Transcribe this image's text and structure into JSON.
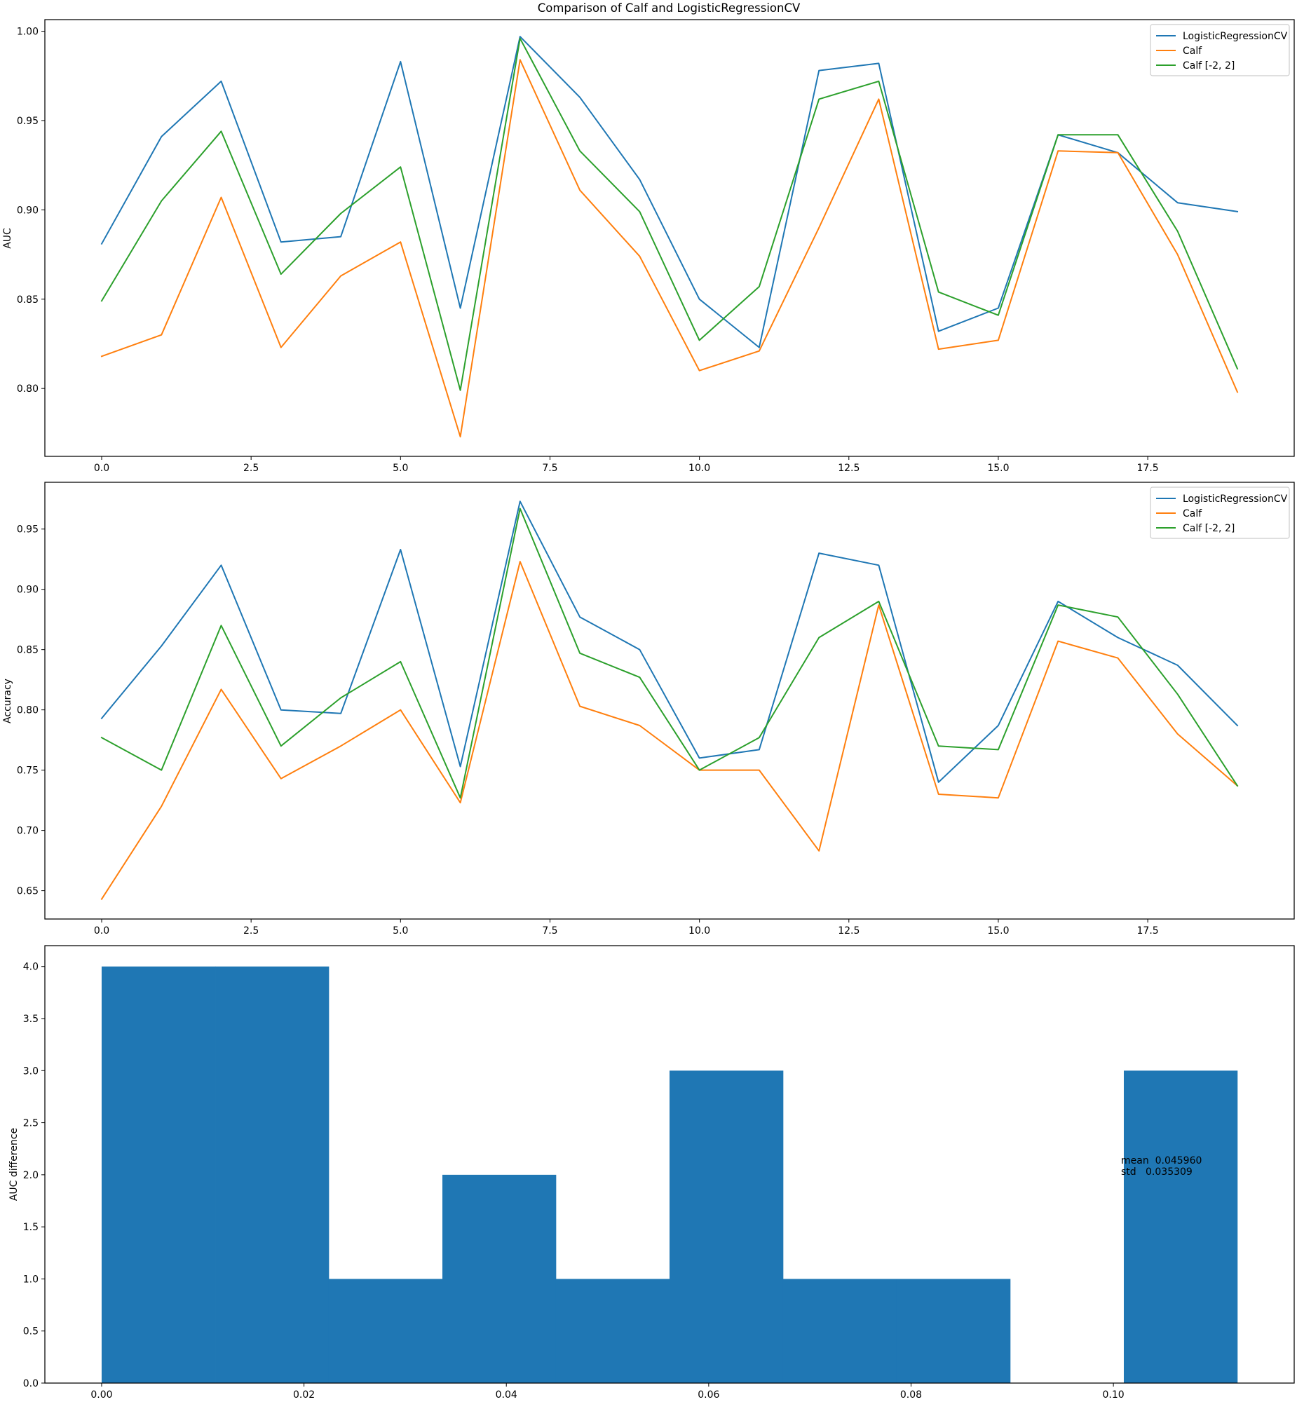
{
  "chart_data": [
    {
      "type": "line",
      "title": "Comparison of Calf and LogisticRegressionCV",
      "xlabel": "",
      "ylabel": "AUC",
      "x": [
        0,
        1,
        2,
        3,
        4,
        5,
        6,
        7,
        8,
        9,
        10,
        11,
        12,
        13,
        14,
        15,
        16,
        17,
        18,
        19
      ],
      "xlim": [
        -0.95,
        19.95
      ],
      "ylim": [
        0.762,
        1.0065
      ],
      "xticks": [
        0.0,
        2.5,
        5.0,
        7.5,
        10.0,
        12.5,
        15.0,
        17.5
      ],
      "xtick_labels": [
        "0.0",
        "2.5",
        "5.0",
        "7.5",
        "10.0",
        "12.5",
        "15.0",
        "17.5"
      ],
      "yticks": [
        0.8,
        0.85,
        0.9,
        0.95,
        1.0
      ],
      "ytick_labels": [
        "0.80",
        "0.85",
        "0.90",
        "0.95",
        "1.00"
      ],
      "grid": false,
      "legend": "top-right",
      "series": [
        {
          "name": "LogisticRegressionCV",
          "color": "#1f77b4",
          "values": [
            0.881,
            0.941,
            0.972,
            0.882,
            0.885,
            0.983,
            0.845,
            0.997,
            0.963,
            0.917,
            0.85,
            0.823,
            0.978,
            0.982,
            0.832,
            0.845,
            0.942,
            0.932,
            0.904,
            0.899
          ]
        },
        {
          "name": "Calf",
          "color": "#ff7f0e",
          "values": [
            0.818,
            0.83,
            0.907,
            0.823,
            0.863,
            0.882,
            0.773,
            0.984,
            0.911,
            0.874,
            0.81,
            0.821,
            0.89,
            0.962,
            0.822,
            0.827,
            0.933,
            0.932,
            0.875,
            0.798
          ]
        },
        {
          "name": "Calf [-2, 2]",
          "color": "#2ca02c",
          "values": [
            0.849,
            0.905,
            0.944,
            0.864,
            0.898,
            0.924,
            0.799,
            0.996,
            0.933,
            0.899,
            0.827,
            0.857,
            0.962,
            0.972,
            0.854,
            0.841,
            0.942,
            0.942,
            0.888,
            0.811
          ]
        }
      ]
    },
    {
      "type": "line",
      "title": "",
      "xlabel": "",
      "ylabel": "Accuracy",
      "x": [
        0,
        1,
        2,
        3,
        4,
        5,
        6,
        7,
        8,
        9,
        10,
        11,
        12,
        13,
        14,
        15,
        16,
        17,
        18,
        19
      ],
      "xlim": [
        -0.95,
        19.95
      ],
      "ylim": [
        0.6265,
        0.9888
      ],
      "xticks": [
        0.0,
        2.5,
        5.0,
        7.5,
        10.0,
        12.5,
        15.0,
        17.5
      ],
      "xtick_labels": [
        "0.0",
        "2.5",
        "5.0",
        "7.5",
        "10.0",
        "12.5",
        "15.0",
        "17.5"
      ],
      "yticks": [
        0.65,
        0.7,
        0.75,
        0.8,
        0.85,
        0.9,
        0.95
      ],
      "ytick_labels": [
        "0.65",
        "0.70",
        "0.75",
        "0.80",
        "0.85",
        "0.90",
        "0.95"
      ],
      "grid": false,
      "legend": "top-right",
      "series": [
        {
          "name": "LogisticRegressionCV",
          "color": "#1f77b4",
          "values": [
            0.793,
            0.853,
            0.92,
            0.8,
            0.797,
            0.933,
            0.753,
            0.973,
            0.877,
            0.85,
            0.76,
            0.767,
            0.93,
            0.92,
            0.74,
            0.787,
            0.89,
            0.86,
            0.837,
            0.787
          ]
        },
        {
          "name": "Calf",
          "color": "#ff7f0e",
          "values": [
            0.643,
            0.72,
            0.817,
            0.743,
            0.77,
            0.8,
            0.723,
            0.923,
            0.803,
            0.787,
            0.75,
            0.75,
            0.683,
            0.887,
            0.73,
            0.727,
            0.857,
            0.843,
            0.78,
            0.737
          ]
        },
        {
          "name": "Calf [-2, 2]",
          "color": "#2ca02c",
          "values": [
            0.777,
            0.75,
            0.87,
            0.77,
            0.81,
            0.84,
            0.727,
            0.967,
            0.847,
            0.827,
            0.75,
            0.777,
            0.86,
            0.89,
            0.77,
            0.767,
            0.887,
            0.877,
            0.813,
            0.737
          ]
        }
      ]
    },
    {
      "type": "bar",
      "subtype": "histogram",
      "title": "",
      "xlabel": "",
      "ylabel": "AUC difference",
      "xlim": [
        -0.00561,
        0.11787
      ],
      "ylim": [
        0,
        4.2
      ],
      "xticks": [
        0.0,
        0.02,
        0.04,
        0.06,
        0.08,
        0.1
      ],
      "xtick_labels": [
        "0.00",
        "0.02",
        "0.04",
        "0.06",
        "0.08",
        "0.10"
      ],
      "yticks": [
        0.0,
        0.5,
        1.0,
        1.5,
        2.0,
        2.5,
        3.0,
        3.5,
        4.0
      ],
      "ytick_labels": [
        "0.0",
        "0.5",
        "1.0",
        "1.5",
        "2.0",
        "2.5",
        "3.0",
        "3.5",
        "4.0"
      ],
      "grid": false,
      "color": "#1f77b4",
      "bin_edges": [
        0.0,
        0.01123,
        0.02245,
        0.03368,
        0.0449,
        0.05613,
        0.06735,
        0.07858,
        0.0898,
        0.10103,
        0.11225
      ],
      "values": [
        4,
        4,
        1,
        2,
        1,
        3,
        1,
        1,
        0,
        3
      ],
      "annotations": [
        {
          "text": "mean  0.045960",
          "x": 0.10103,
          "y": 2.1
        },
        {
          "text": "std   0.035309",
          "x": 0.10103,
          "y": 2.0
        }
      ]
    }
  ]
}
